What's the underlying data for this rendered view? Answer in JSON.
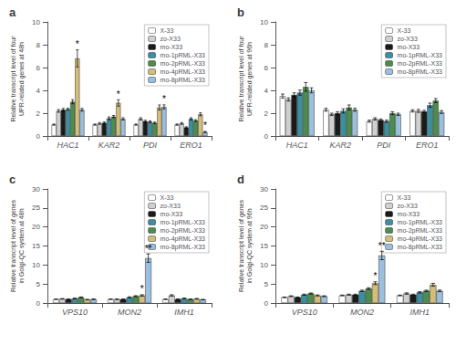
{
  "chart_data": [
    {
      "type": "bar",
      "title": "a",
      "ylabel": "Relative transcript level of four\nUPR-related genes at 48h",
      "categories": [
        "HAC1",
        "KAR2",
        "PDI",
        "ERO1"
      ],
      "series": [
        {
          "name": "X-33",
          "color": "#ffffff",
          "values": [
            1.0,
            1.0,
            1.0,
            1.0
          ],
          "errors": [
            0.05,
            0.05,
            0.05,
            0.05
          ]
        },
        {
          "name": "zo-X33",
          "color": "#d0d0d0",
          "values": [
            2.2,
            1.1,
            1.5,
            1.1
          ],
          "errors": [
            0.12,
            0.08,
            0.1,
            0.08
          ]
        },
        {
          "name": "mo-X33",
          "color": "#1a1a1a",
          "values": [
            2.3,
            1.15,
            1.3,
            0.75
          ],
          "errors": [
            0.12,
            0.08,
            0.08,
            0.06
          ]
        },
        {
          "name": "mo-1pRML-X33",
          "color": "#3b8fa0",
          "values": [
            2.35,
            1.55,
            1.25,
            1.5
          ],
          "errors": [
            0.08,
            0.12,
            0.08,
            0.1
          ]
        },
        {
          "name": "mo-2pRML-X33",
          "color": "#4d8c4d",
          "values": [
            3.0,
            1.7,
            1.15,
            1.35
          ],
          "errors": [
            0.18,
            0.1,
            0.07,
            0.08
          ]
        },
        {
          "name": "mo-4pRML-X33",
          "color": "#d4bc7a",
          "values": [
            6.8,
            2.9,
            2.5,
            1.9
          ],
          "errors": [
            0.75,
            0.28,
            0.22,
            0.13
          ]
        },
        {
          "name": "mo-8pRML-X33",
          "color": "#9bbfdc",
          "values": [
            2.3,
            1.5,
            2.55,
            0.35
          ],
          "errors": [
            0.12,
            0.1,
            0.18,
            0.06
          ]
        }
      ],
      "ylim": [
        0,
        10
      ],
      "yticks": [
        0,
        2,
        4,
        6,
        8,
        10
      ],
      "grid": false,
      "legend": "upper right",
      "annotations": [
        {
          "category": "HAC1",
          "series": "mo-4pRML-X33",
          "text": "*"
        },
        {
          "category": "KAR2",
          "series": "mo-4pRML-X33",
          "text": "*"
        },
        {
          "category": "PDI",
          "series": "mo-8pRML-X33",
          "text": "*"
        },
        {
          "category": "ERO1",
          "series": "mo-8pRML-X33",
          "text": "*"
        }
      ]
    },
    {
      "type": "bar",
      "title": "b",
      "ylabel": "Relative transcript level of four\nUPR-related genes at 96h",
      "categories": [
        "HAC1",
        "KAR2",
        "PDI",
        "ERO1"
      ],
      "series": [
        {
          "name": "X-33",
          "color": "#ffffff",
          "values": [
            3.5,
            2.3,
            1.3,
            2.2
          ],
          "errors": [
            0.18,
            0.13,
            0.09,
            0.1
          ]
        },
        {
          "name": "zo-X33",
          "color": "#d0d0d0",
          "values": [
            3.2,
            1.9,
            1.5,
            2.2
          ],
          "errors": [
            0.14,
            0.1,
            0.1,
            0.13
          ]
        },
        {
          "name": "mo-X33",
          "color": "#1a1a1a",
          "values": [
            3.6,
            2.0,
            1.4,
            2.15
          ],
          "errors": [
            0.18,
            0.13,
            0.09,
            0.1
          ]
        },
        {
          "name": "mo-1pRML-X33",
          "color": "#3b8fa0",
          "values": [
            3.8,
            2.2,
            1.3,
            2.7
          ],
          "errors": [
            0.22,
            0.18,
            0.09,
            0.18
          ]
        },
        {
          "name": "mo-2pRML-X33",
          "color": "#4d8c4d",
          "values": [
            4.3,
            2.5,
            2.0,
            3.1
          ],
          "errors": [
            0.38,
            0.22,
            0.13,
            0.18
          ]
        },
        {
          "name": "mo-8pRML-X33",
          "color": "#9bbfdc",
          "values": [
            4.0,
            2.3,
            1.9,
            2.1
          ],
          "errors": [
            0.22,
            0.13,
            0.1,
            0.13
          ]
        }
      ],
      "ylim": [
        0,
        10
      ],
      "yticks": [
        0,
        2,
        4,
        6,
        8,
        10
      ],
      "grid": false,
      "legend": "upper right"
    },
    {
      "type": "bar",
      "title": "c",
      "ylabel": "Relative transcript level of genes\nin Golgi-QC system at 48h",
      "categories": [
        "VPS10",
        "MON2",
        "IMH1"
      ],
      "series": [
        {
          "name": "X-33",
          "color": "#ffffff",
          "values": [
            1.0,
            1.0,
            1.0
          ],
          "errors": [
            0.05,
            0.05,
            0.05
          ]
        },
        {
          "name": "zo-X33",
          "color": "#d0d0d0",
          "values": [
            1.1,
            1.0,
            2.0
          ],
          "errors": [
            0.07,
            0.07,
            0.18
          ]
        },
        {
          "name": "mo-X33",
          "color": "#1a1a1a",
          "values": [
            1.0,
            1.0,
            1.0
          ],
          "errors": [
            0.05,
            0.05,
            0.06
          ]
        },
        {
          "name": "mo-1pRML-X33",
          "color": "#3b8fa0",
          "values": [
            1.2,
            1.5,
            1.2
          ],
          "errors": [
            0.09,
            0.13,
            0.1
          ]
        },
        {
          "name": "mo-2pRML-X33",
          "color": "#4d8c4d",
          "values": [
            1.5,
            1.8,
            1.0
          ],
          "errors": [
            0.1,
            0.13,
            0.07
          ]
        },
        {
          "name": "mo-4pRML-X33",
          "color": "#d4bc7a",
          "values": [
            0.9,
            2.0,
            1.1
          ],
          "errors": [
            0.07,
            0.18,
            0.09
          ]
        },
        {
          "name": "mo-8pRML-X33",
          "color": "#9bbfdc",
          "values": [
            1.0,
            11.8,
            0.9
          ],
          "errors": [
            0.07,
            1.1,
            0.07
          ]
        }
      ],
      "ylim": [
        0,
        30
      ],
      "yticks": [
        0,
        5,
        10,
        15,
        20,
        25,
        30
      ],
      "grid": false,
      "legend": "upper right",
      "annotations": [
        {
          "category": "MON2",
          "series": "mo-4pRML-X33",
          "text": "*"
        },
        {
          "category": "MON2",
          "series": "mo-8pRML-X33",
          "text": "**"
        }
      ]
    },
    {
      "type": "bar",
      "title": "d",
      "ylabel": "Relative transcript level of genes\nin Golgi-QC system at 96h",
      "categories": [
        "VPS10",
        "MON2",
        "IMH1"
      ],
      "series": [
        {
          "name": "X-33",
          "color": "#ffffff",
          "values": [
            1.5,
            2.0,
            2.0
          ],
          "errors": [
            0.07,
            0.1,
            0.09
          ]
        },
        {
          "name": "zo-X33",
          "color": "#d0d0d0",
          "values": [
            1.8,
            2.2,
            2.5
          ],
          "errors": [
            0.1,
            0.13,
            0.18
          ]
        },
        {
          "name": "mo-X33",
          "color": "#1a1a1a",
          "values": [
            1.5,
            2.2,
            2.2
          ],
          "errors": [
            0.08,
            0.13,
            0.13
          ]
        },
        {
          "name": "mo-1pRML-X33",
          "color": "#3b8fa0",
          "values": [
            2.2,
            3.2,
            2.8
          ],
          "errors": [
            0.14,
            0.18,
            0.18
          ]
        },
        {
          "name": "mo-2pRML-X33",
          "color": "#4d8c4d",
          "values": [
            2.5,
            3.8,
            3.2
          ],
          "errors": [
            0.14,
            0.22,
            0.18
          ]
        },
        {
          "name": "mo-4pRML-X33",
          "color": "#d4bc7a",
          "values": [
            2.0,
            5.2,
            4.8
          ],
          "errors": [
            0.13,
            0.38,
            0.38
          ]
        },
        {
          "name": "mo-8pRML-X33",
          "color": "#9bbfdc",
          "values": [
            1.8,
            12.5,
            3.2
          ],
          "errors": [
            0.1,
            1.1,
            0.22
          ]
        }
      ],
      "ylim": [
        0,
        30
      ],
      "yticks": [
        0,
        5,
        10,
        15,
        20,
        25,
        30
      ],
      "grid": false,
      "legend": "upper right",
      "annotations": [
        {
          "category": "MON2",
          "series": "mo-4pRML-X33",
          "text": "*"
        },
        {
          "category": "MON2",
          "series": "mo-8pRML-X33",
          "text": "**"
        }
      ]
    }
  ]
}
